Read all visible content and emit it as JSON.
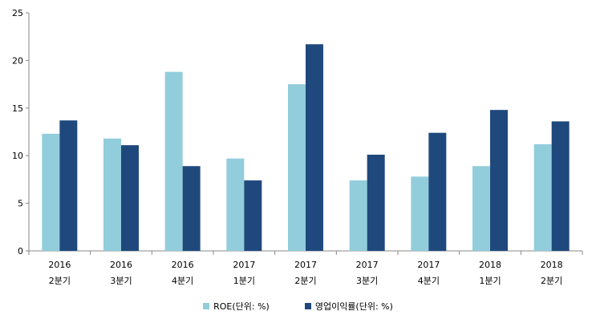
{
  "chart_data": {
    "type": "bar",
    "title": "",
    "xlabel": "",
    "ylabel": "",
    "categories": [
      [
        "2016",
        "2분기"
      ],
      [
        "2016",
        "3분기"
      ],
      [
        "2016",
        "4분기"
      ],
      [
        "2017",
        "1분기"
      ],
      [
        "2017",
        "2분기"
      ],
      [
        "2017",
        "3분기"
      ],
      [
        "2017",
        "4분기"
      ],
      [
        "2018",
        "1분기"
      ],
      [
        "2018",
        "2분기"
      ]
    ],
    "series": [
      {
        "name": "ROE(단위: %)",
        "color": "#92cddc",
        "values": [
          12.3,
          11.8,
          18.8,
          9.7,
          17.5,
          7.4,
          7.8,
          8.9,
          11.2
        ]
      },
      {
        "name": "영업이익률(단위: %)",
        "color": "#1f497d",
        "values": [
          13.7,
          11.1,
          8.9,
          7.4,
          21.7,
          10.1,
          12.4,
          14.8,
          13.6
        ]
      }
    ],
    "ylim": [
      0,
      25
    ],
    "yticks": [
      0,
      5,
      10,
      15,
      20,
      25
    ],
    "grid": false,
    "legend_position": "bottom"
  }
}
